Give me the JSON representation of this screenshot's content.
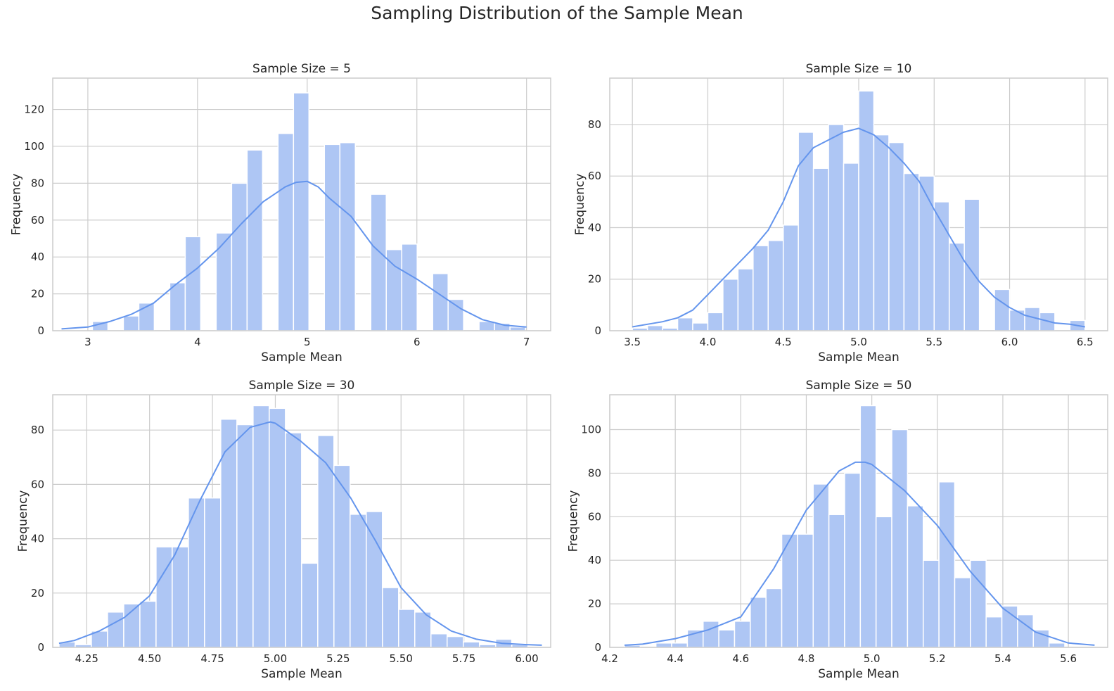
{
  "figure": {
    "title": "Sampling Distribution of the Sample Mean"
  },
  "colors": {
    "bar": "#aec6f4",
    "kde": "#6495ed",
    "grid": "#cccccc",
    "frame": "#cccccc",
    "bar_edge": "#ffffff"
  },
  "chart_data": [
    {
      "type": "bar",
      "title": "Sample Size = 5",
      "xlabel": "Sample Mean",
      "ylabel": "Frequency",
      "xlim": [
        2.68,
        7.22
      ],
      "ylim": [
        0,
        137
      ],
      "xticks": [
        3,
        4,
        5,
        6,
        7
      ],
      "xtick_labels": [
        "3",
        "4",
        "5",
        "6",
        "7"
      ],
      "yticks": [
        0,
        20,
        40,
        60,
        80,
        100,
        120
      ],
      "bins": {
        "start": 2.76,
        "width": 0.141
      },
      "values": [
        0,
        0,
        5,
        0,
        8,
        15,
        0,
        26,
        51,
        0,
        53,
        80,
        98,
        0,
        107,
        129,
        0,
        101,
        102,
        0,
        74,
        44,
        47,
        0,
        31,
        17,
        0,
        5,
        4,
        2
      ],
      "kde": {
        "x": [
          2.76,
          3.0,
          3.2,
          3.4,
          3.6,
          3.8,
          4.0,
          4.2,
          4.4,
          4.6,
          4.8,
          4.9,
          5.0,
          5.1,
          5.2,
          5.4,
          5.6,
          5.8,
          6.0,
          6.2,
          6.4,
          6.6,
          6.8,
          7.0
        ],
        "y": [
          1,
          2,
          5,
          9,
          15,
          25,
          34,
          45,
          58,
          70,
          78,
          80.5,
          81,
          78,
          72,
          62,
          46,
          35,
          28,
          20,
          12,
          6,
          3,
          2
        ]
      }
    },
    {
      "type": "bar",
      "title": "Sample Size = 10",
      "xlabel": "Sample Mean",
      "ylabel": "Frequency",
      "xlim": [
        3.35,
        6.65
      ],
      "ylim": [
        0,
        98
      ],
      "xticks": [
        3.5,
        4.0,
        4.5,
        5.0,
        5.5,
        6.0,
        6.5
      ],
      "xtick_labels": [
        "3.5",
        "4.0",
        "4.5",
        "5.0",
        "5.5",
        "6.0",
        "6.5"
      ],
      "yticks": [
        0,
        20,
        40,
        60,
        80
      ],
      "bins": {
        "start": 3.5,
        "width": 0.1
      },
      "values": [
        1,
        2,
        1,
        5,
        3,
        7,
        20,
        24,
        33,
        35,
        41,
        77,
        63,
        80,
        65,
        93,
        76,
        73,
        61,
        60,
        50,
        34,
        51,
        0,
        16,
        8,
        9,
        7,
        0,
        4
      ],
      "kde": {
        "x": [
          3.5,
          3.6,
          3.7,
          3.8,
          3.9,
          4.0,
          4.1,
          4.2,
          4.3,
          4.4,
          4.5,
          4.6,
          4.7,
          4.8,
          4.9,
          5.0,
          5.1,
          5.2,
          5.3,
          5.4,
          5.5,
          5.6,
          5.7,
          5.8,
          5.9,
          6.0,
          6.1,
          6.2,
          6.3,
          6.4,
          6.5
        ],
        "y": [
          1.5,
          2.5,
          3.5,
          5,
          8,
          14,
          20,
          26,
          32,
          39,
          50,
          64,
          71,
          74,
          77,
          78.5,
          76,
          71,
          65,
          58,
          47,
          37,
          27,
          19,
          13,
          9,
          6,
          4.5,
          3,
          2.5,
          1.5
        ]
      }
    },
    {
      "type": "bar",
      "title": "Sample Size = 30",
      "xlabel": "Sample Mean",
      "ylabel": "Frequency",
      "xlim": [
        4.115,
        6.095
      ],
      "ylim": [
        0,
        93
      ],
      "xticks": [
        4.25,
        4.5,
        4.75,
        5.0,
        5.25,
        5.5,
        5.75,
        6.0
      ],
      "xtick_labels": [
        "4.25",
        "4.50",
        "4.75",
        "5.00",
        "5.25",
        "5.50",
        "5.75",
        "6.00"
      ],
      "yticks": [
        0,
        20,
        40,
        60,
        80
      ],
      "bins": {
        "start": 4.14,
        "width": 0.0643
      },
      "values": [
        2,
        1,
        6,
        13,
        16,
        17,
        37,
        37,
        55,
        55,
        84,
        82,
        89,
        88,
        79,
        31,
        78,
        67,
        49,
        50,
        22,
        14,
        13,
        5,
        4,
        2,
        1,
        3,
        1,
        0
      ],
      "kde": {
        "x": [
          4.14,
          4.2,
          4.3,
          4.4,
          4.5,
          4.6,
          4.7,
          4.8,
          4.9,
          4.98,
          5.0,
          5.1,
          5.2,
          5.3,
          5.4,
          5.5,
          5.6,
          5.7,
          5.8,
          5.9,
          6.0,
          6.06
        ],
        "y": [
          1.5,
          2.5,
          6,
          11,
          19,
          34,
          54,
          72,
          81,
          83,
          82.5,
          76,
          68,
          55,
          39,
          22,
          12,
          6,
          3,
          1.5,
          1,
          0.8
        ]
      }
    },
    {
      "type": "bar",
      "title": "Sample Size = 50",
      "xlabel": "Sample Mean",
      "ylabel": "Frequency",
      "xlim": [
        4.2,
        5.72
      ],
      "ylim": [
        0,
        116
      ],
      "xticks": [
        4.2,
        4.4,
        4.6,
        4.8,
        5.0,
        5.2,
        5.4,
        5.6
      ],
      "xtick_labels": [
        "4.2",
        "4.4",
        "4.6",
        "4.8",
        "5.0",
        "5.2",
        "5.4",
        "5.6"
      ],
      "yticks": [
        0,
        20,
        40,
        60,
        80,
        100
      ],
      "bins": {
        "start": 4.245,
        "width": 0.048
      },
      "values": [
        1,
        0,
        2,
        2,
        8,
        12,
        8,
        12,
        23,
        27,
        52,
        52,
        75,
        61,
        80,
        111,
        60,
        100,
        65,
        40,
        76,
        32,
        40,
        14,
        19,
        15,
        8,
        2,
        0,
        0
      ],
      "kde": {
        "x": [
          4.245,
          4.3,
          4.4,
          4.5,
          4.6,
          4.7,
          4.8,
          4.9,
          4.95,
          4.98,
          5.0,
          5.05,
          5.1,
          5.2,
          5.3,
          5.4,
          5.5,
          5.6,
          5.68
        ],
        "y": [
          1,
          1.5,
          4,
          8,
          14,
          36,
          63,
          81,
          85,
          85,
          84,
          78,
          72,
          56,
          35,
          18,
          7,
          2,
          1
        ]
      }
    }
  ]
}
